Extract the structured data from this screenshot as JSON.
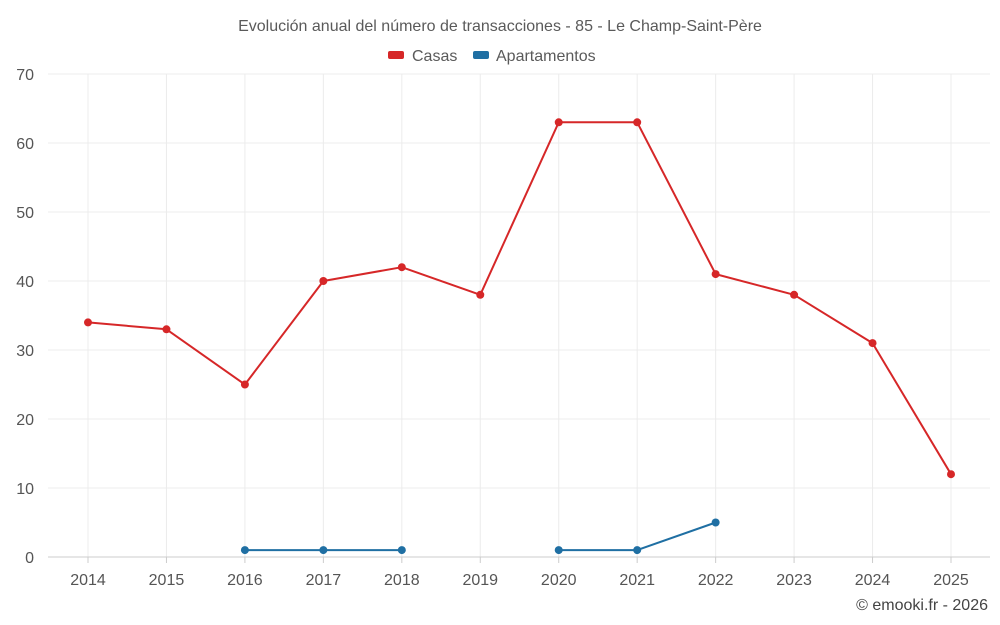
{
  "chart_data": {
    "type": "line",
    "title": "Evolución anual del número de transacciones - 85 - Le Champ-Saint-Père",
    "xlabel": "",
    "ylabel": "",
    "categories": [
      "2014",
      "2015",
      "2016",
      "2017",
      "2018",
      "2019",
      "2020",
      "2021",
      "2022",
      "2023",
      "2024",
      "2025"
    ],
    "yticks": [
      "0",
      "10",
      "20",
      "30",
      "40",
      "50",
      "60",
      "70"
    ],
    "ylim": [
      0,
      70
    ],
    "grid": true,
    "legend_position": "top-center",
    "series": [
      {
        "name": "Casas",
        "color": "#d62728",
        "values": [
          34,
          33,
          25,
          40,
          42,
          38,
          63,
          63,
          41,
          38,
          31,
          12
        ]
      },
      {
        "name": "Apartamentos",
        "color": "#1f6fa3",
        "values": [
          null,
          null,
          1,
          1,
          1,
          null,
          1,
          1,
          5,
          null,
          null,
          null
        ]
      }
    ],
    "credit": "© emooki.fr - 2026"
  }
}
